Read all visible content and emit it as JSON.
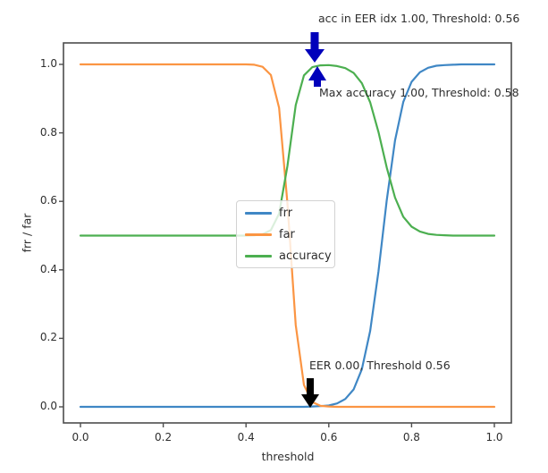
{
  "figure": {
    "background": "#ffffff"
  },
  "colors": {
    "frr": "#3f87c5",
    "far": "#fb9543",
    "accuracy": "#4caf50",
    "arrow_blue": "#0000bb",
    "arrow_black": "#000000",
    "spine": "#4d4d4d",
    "text": "#2e2e2e"
  },
  "axes": {
    "xlabel": "threshold",
    "ylabel": "frr / far",
    "xticks": [
      "0.0",
      "0.2",
      "0.4",
      "0.6",
      "0.8",
      "1.0"
    ],
    "yticks": [
      "0.0",
      "0.2",
      "0.4",
      "0.6",
      "0.8",
      "1.0"
    ]
  },
  "legend": {
    "items": [
      {
        "label": "frr",
        "color": "#3f87c5"
      },
      {
        "label": "far",
        "color": "#fb9543"
      },
      {
        "label": "accuracy",
        "color": "#4caf50"
      }
    ]
  },
  "annotations": {
    "acc_eer": "acc in EER idx 1.00, Threshold: 0.56",
    "max_acc": "Max accuracy 1.00, Threshold: 0.58",
    "eer": "EER 0.00, Threshold 0.56"
  },
  "chart_data": {
    "type": "line",
    "title": "",
    "xlabel": "threshold",
    "ylabel": "frr / far",
    "xlim": [
      0,
      1
    ],
    "ylim": [
      0,
      1
    ],
    "grid": false,
    "legend_position": "center",
    "xticks": [
      0.0,
      0.2,
      0.4,
      0.6,
      0.8,
      1.0
    ],
    "yticks": [
      0.0,
      0.2,
      0.4,
      0.6,
      0.8,
      1.0
    ],
    "annotations": [
      {
        "text": "acc in EER idx 1.00, Threshold: 0.56",
        "point_x": 0.57,
        "point_y": 1.0,
        "arrow": "down",
        "arrow_color": "#0000bb"
      },
      {
        "text": "Max accuracy 1.00, Threshold: 0.58",
        "point_x": 0.57,
        "point_y": 1.0,
        "arrow": "up",
        "arrow_color": "#0000bb"
      },
      {
        "text": "EER 0.00, Threshold 0.56",
        "point_x": 0.56,
        "point_y": 0.0,
        "arrow": "down",
        "arrow_color": "#000000"
      }
    ],
    "x": [
      0.0,
      0.02,
      0.04,
      0.06,
      0.08,
      0.1,
      0.12,
      0.14,
      0.16,
      0.18,
      0.2,
      0.22,
      0.24,
      0.26,
      0.28,
      0.3,
      0.32,
      0.34,
      0.36,
      0.38,
      0.4,
      0.42,
      0.44,
      0.46,
      0.48,
      0.5,
      0.52,
      0.54,
      0.56,
      0.58,
      0.6,
      0.62,
      0.64,
      0.66,
      0.68,
      0.7,
      0.72,
      0.74,
      0.76,
      0.78,
      0.8,
      0.82,
      0.84,
      0.86,
      0.88,
      0.9,
      0.92,
      0.94,
      0.96,
      0.98,
      1.0
    ],
    "series": [
      {
        "name": "frr",
        "color": "#3f87c5",
        "values": [
          0,
          0,
          0,
          0,
          0,
          0,
          0,
          0,
          0,
          0,
          0,
          0,
          0,
          0,
          0,
          0,
          0,
          0,
          0,
          0,
          0,
          0,
          0,
          0,
          0,
          0,
          0,
          0,
          0.001,
          0.002,
          0.004,
          0.01,
          0.023,
          0.051,
          0.11,
          0.222,
          0.396,
          0.603,
          0.778,
          0.89,
          0.949,
          0.977,
          0.99,
          0.996,
          0.998,
          0.999,
          1,
          1,
          1,
          1,
          1
        ]
      },
      {
        "name": "far",
        "color": "#fb9543",
        "values": [
          1,
          1,
          1,
          1,
          1,
          1,
          1,
          1,
          1,
          1,
          1,
          1,
          1,
          1,
          1,
          1,
          1,
          1,
          1,
          1,
          1,
          0.999,
          0.993,
          0.969,
          0.873,
          0.595,
          0.239,
          0.064,
          0.014,
          0.003,
          0.001,
          0,
          0,
          0,
          0,
          0,
          0,
          0,
          0,
          0,
          0,
          0,
          0,
          0,
          0,
          0,
          0,
          0,
          0,
          0,
          0
        ]
      },
      {
        "name": "accuracy",
        "color": "#4caf50",
        "values": [
          0.5,
          0.5,
          0.5,
          0.5,
          0.5,
          0.5,
          0.5,
          0.5,
          0.5,
          0.5,
          0.5,
          0.5,
          0.5,
          0.5,
          0.5,
          0.5,
          0.5,
          0.5,
          0.5,
          0.5,
          0.5,
          0.501,
          0.504,
          0.516,
          0.564,
          0.703,
          0.881,
          0.968,
          0.992,
          0.997,
          0.998,
          0.995,
          0.989,
          0.975,
          0.945,
          0.889,
          0.802,
          0.699,
          0.611,
          0.555,
          0.526,
          0.512,
          0.505,
          0.502,
          0.501,
          0.5,
          0.5,
          0.5,
          0.5,
          0.5,
          0.5
        ]
      }
    ]
  }
}
